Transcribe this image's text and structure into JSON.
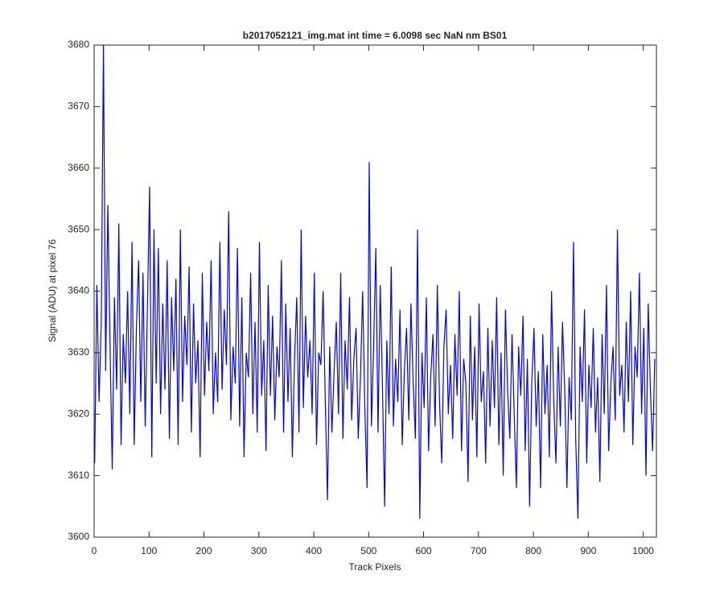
{
  "chart_data": {
    "type": "line",
    "title": "b2017052121_img.mat int time = 6.0098 sec  NaN nm BS01",
    "x_label": "Track Pixels",
    "y_label": "Signal (ADU) at pixel 76",
    "xlim": [
      0,
      1024
    ],
    "ylim": [
      3600,
      3680
    ],
    "xticks": [
      0,
      100,
      200,
      300,
      400,
      500,
      600,
      700,
      800,
      900,
      1000
    ],
    "yticks": [
      3600,
      3610,
      3620,
      3630,
      3640,
      3650,
      3660,
      3670,
      3680
    ],
    "grid": false,
    "x": [
      1,
      5,
      9,
      13,
      17,
      21,
      25,
      29,
      33,
      37,
      41,
      45,
      49,
      53,
      57,
      61,
      65,
      69,
      73,
      77,
      81,
      85,
      89,
      93,
      97,
      101,
      105,
      109,
      113,
      117,
      121,
      125,
      129,
      133,
      137,
      141,
      145,
      149,
      153,
      157,
      161,
      165,
      169,
      173,
      177,
      181,
      185,
      189,
      193,
      197,
      201,
      205,
      209,
      213,
      217,
      221,
      225,
      229,
      233,
      237,
      241,
      245,
      249,
      253,
      257,
      261,
      265,
      269,
      273,
      277,
      281,
      285,
      289,
      293,
      297,
      301,
      305,
      309,
      313,
      317,
      321,
      325,
      329,
      333,
      337,
      341,
      345,
      349,
      353,
      357,
      361,
      365,
      369,
      373,
      377,
      381,
      385,
      389,
      393,
      397,
      401,
      405,
      409,
      413,
      417,
      421,
      425,
      429,
      433,
      437,
      441,
      445,
      449,
      453,
      457,
      461,
      465,
      469,
      473,
      477,
      481,
      485,
      489,
      493,
      497,
      501,
      505,
      509,
      513,
      517,
      521,
      525,
      529,
      533,
      537,
      541,
      545,
      549,
      553,
      557,
      561,
      565,
      569,
      573,
      577,
      581,
      585,
      589,
      593,
      597,
      601,
      605,
      609,
      613,
      617,
      621,
      625,
      629,
      633,
      637,
      641,
      645,
      649,
      653,
      657,
      661,
      665,
      669,
      673,
      677,
      681,
      685,
      689,
      693,
      697,
      701,
      705,
      709,
      713,
      717,
      721,
      725,
      729,
      733,
      737,
      741,
      745,
      749,
      753,
      757,
      761,
      765,
      769,
      773,
      777,
      781,
      785,
      789,
      793,
      797,
      801,
      805,
      809,
      813,
      817,
      821,
      825,
      829,
      833,
      837,
      841,
      845,
      849,
      853,
      857,
      861,
      865,
      869,
      873,
      877,
      881,
      885,
      889,
      893,
      897,
      901,
      905,
      909,
      913,
      917,
      921,
      925,
      929,
      933,
      937,
      941,
      945,
      949,
      953,
      957,
      961,
      965,
      969,
      973,
      977,
      981,
      985,
      989,
      993,
      997,
      1001,
      1005,
      1009,
      1013,
      1017,
      1021
    ],
    "series": [
      {
        "color": "#0000ff",
        "values": [
          3612,
          3641,
          3622,
          3635,
          3680,
          3627,
          3654,
          3631,
          3611,
          3639,
          3624,
          3651,
          3615,
          3633,
          3625,
          3640,
          3620,
          3648,
          3615,
          3634,
          3645,
          3622,
          3643,
          3618,
          3637,
          3657,
          3613,
          3650,
          3625,
          3647,
          3620,
          3638,
          3624,
          3645,
          3616,
          3639,
          3627,
          3642,
          3615,
          3650,
          3622,
          3636,
          3628,
          3644,
          3617,
          3638,
          3625,
          3632,
          3613,
          3643,
          3623,
          3635,
          3627,
          3645,
          3620,
          3630,
          3622,
          3648,
          3624,
          3637,
          3628,
          3653,
          3619,
          3631,
          3625,
          3647,
          3618,
          3639,
          3613,
          3630,
          3626,
          3643,
          3620,
          3635,
          3617,
          3648,
          3623,
          3632,
          3614,
          3641,
          3623,
          3636,
          3619,
          3631,
          3626,
          3645,
          3617,
          3638,
          3622,
          3634,
          3613,
          3629,
          3639,
          3617,
          3650,
          3621,
          3636,
          3626,
          3632,
          3620,
          3643,
          3615,
          3630,
          3628,
          3640,
          3622,
          3606,
          3631,
          3617,
          3627,
          3635,
          3620,
          3643,
          3616,
          3632,
          3624,
          3639,
          3619,
          3629,
          3634,
          3616,
          3626,
          3640,
          3621,
          3608,
          3661,
          3618,
          3631,
          3647,
          3617,
          3641,
          3625,
          3605,
          3632,
          3620,
          3644,
          3618,
          3629,
          3622,
          3637,
          3615,
          3627,
          3634,
          3619,
          3638,
          3625,
          3616,
          3650,
          3603,
          3630,
          3621,
          3639,
          3614,
          3626,
          3633,
          3618,
          3641,
          3622,
          3612,
          3631,
          3637,
          3620,
          3628,
          3616,
          3633,
          3623,
          3640,
          3614,
          3629,
          3625,
          3609,
          3636,
          3619,
          3631,
          3613,
          3638,
          3622,
          3627,
          3612,
          3634,
          3618,
          3632,
          3621,
          3639,
          3615,
          3630,
          3610,
          3637,
          3624,
          3616,
          3633,
          3620,
          3608,
          3631,
          3623,
          3636,
          3614,
          3629,
          3605,
          3625,
          3634,
          3618,
          3627,
          3608,
          3633,
          3620,
          3628,
          3613,
          3640,
          3622,
          3612,
          3631,
          3618,
          3635,
          3624,
          3608,
          3626,
          3619,
          3648,
          3616,
          3603,
          3631,
          3622,
          3637,
          3612,
          3628,
          3621,
          3634,
          3617,
          3626,
          3609,
          3633,
          3620,
          3641,
          3614,
          3625,
          3631,
          3619,
          3650,
          3623,
          3628,
          3617,
          3635,
          3622,
          3640,
          3615,
          3631,
          3626,
          3643,
          3620,
          3634,
          3610,
          3638,
          3624,
          3614,
          3629
        ]
      }
    ]
  }
}
